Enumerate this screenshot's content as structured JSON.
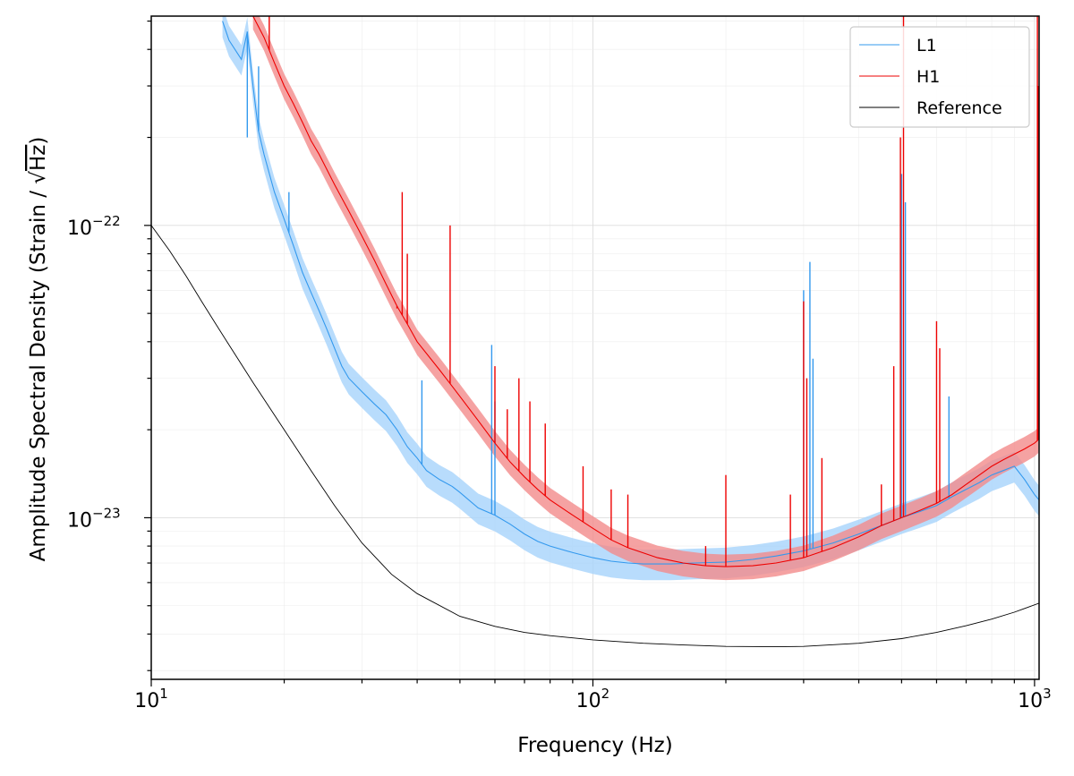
{
  "chart_data": {
    "type": "line",
    "title": "",
    "xlabel": "Frequency (Hz)",
    "ylabel_text": "Amplitude Spectral Density (Strain / √Hz)",
    "ylabel": {
      "prefix": "Amplitude Spectral Density (Strain / ",
      "radical": "√",
      "radicand": "Hz",
      "suffix": ")"
    },
    "xscale": "log",
    "yscale": "log",
    "xlim": [
      10,
      1024
    ],
    "ylim": [
      2.8e-24,
      5.2e-22
    ],
    "xticks": [
      {
        "value": 10,
        "base": "10",
        "exp": "1"
      },
      {
        "value": 100,
        "base": "10",
        "exp": "2"
      },
      {
        "value": 1000,
        "base": "10",
        "exp": "3"
      }
    ],
    "yticks": [
      {
        "value": 1e-23,
        "base": "10",
        "exp": "−23"
      },
      {
        "value": 1e-22,
        "base": "10",
        "exp": "−22"
      }
    ],
    "grid": true,
    "legend": {
      "position": "top-right",
      "entries": [
        {
          "label": "L1",
          "color": "#3399ee"
        },
        {
          "label": "H1",
          "color": "#ee0000"
        },
        {
          "label": "Reference",
          "color": "#000000"
        }
      ]
    },
    "series": [
      {
        "name": "L1",
        "color": "#3399ee",
        "band_color": "#a6d3fb",
        "x": [
          14.5,
          15,
          16,
          16.5,
          17,
          17.5,
          18,
          19,
          20,
          21,
          22,
          23,
          24,
          25,
          26,
          27,
          28,
          30,
          32,
          34,
          36,
          38,
          40,
          42,
          45,
          48,
          50,
          55,
          60,
          65,
          70,
          75,
          80,
          90,
          100,
          110,
          120,
          130,
          150,
          170,
          200,
          230,
          260,
          300,
          350,
          400,
          450,
          500,
          550,
          600,
          650,
          700,
          750,
          800,
          850,
          900,
          950,
          1000,
          1024
        ],
        "y": [
          5e-22,
          4.3e-22,
          3.7e-22,
          4.6e-22,
          3e-22,
          2.1e-22,
          1.75e-22,
          1.3e-22,
          1.05e-22,
          8.5e-23,
          6.9e-23,
          5.9e-23,
          5.1e-23,
          4.4e-23,
          3.8e-23,
          3.3e-23,
          3e-23,
          2.7e-23,
          2.45e-23,
          2.25e-23,
          2e-23,
          1.75e-23,
          1.6e-23,
          1.45e-23,
          1.35e-23,
          1.28e-23,
          1.22e-23,
          1.08e-23,
          1.02e-23,
          9.5e-24,
          8.8e-24,
          8.3e-24,
          8e-24,
          7.6e-24,
          7.3e-24,
          7.1e-24,
          7e-24,
          6.95e-24,
          6.95e-24,
          7e-24,
          7.05e-24,
          7.2e-24,
          7.4e-24,
          7.7e-24,
          8.2e-24,
          8.8e-24,
          9.4e-24,
          1e-23,
          1.05e-23,
          1.1e-23,
          1.18e-23,
          1.25e-23,
          1.32e-23,
          1.4e-23,
          1.45e-23,
          1.5e-23,
          1.35e-23,
          1.2e-23,
          1.15e-23
        ],
        "band": 0.12,
        "spikes": [
          [
            16.5,
            2e-22
          ],
          [
            17.5,
            3.5e-22
          ],
          [
            20.5,
            1.3e-22
          ],
          [
            41,
            2.95e-23
          ],
          [
            59,
            3.9e-23
          ],
          [
            60,
            2.5e-23
          ],
          [
            300,
            6e-23
          ],
          [
            310,
            7.5e-23
          ],
          [
            315,
            3.5e-23
          ],
          [
            500,
            1.5e-22
          ],
          [
            510,
            1.2e-22
          ],
          [
            640,
            2.6e-23
          ]
        ]
      },
      {
        "name": "H1",
        "color": "#ee0000",
        "band_color": "#f28b8b",
        "x": [
          17,
          18,
          19,
          20,
          21,
          22,
          23,
          24,
          25,
          26,
          28,
          30,
          32,
          34,
          36,
          38,
          40,
          45,
          50,
          55,
          60,
          65,
          70,
          75,
          80,
          90,
          100,
          110,
          120,
          140,
          160,
          180,
          200,
          230,
          260,
          300,
          350,
          400,
          450,
          500,
          550,
          600,
          650,
          700,
          750,
          800,
          850,
          900,
          950,
          1000,
          1020
        ],
        "y": [
          5.2e-22,
          4.4e-22,
          3.6e-22,
          3e-22,
          2.6e-22,
          2.25e-22,
          1.95e-22,
          1.75e-22,
          1.55e-22,
          1.38e-22,
          1.12e-22,
          9.2e-23,
          7.6e-23,
          6.3e-23,
          5.3e-23,
          4.6e-23,
          4e-23,
          3.2e-23,
          2.6e-23,
          2.15e-23,
          1.8e-23,
          1.55e-23,
          1.38e-23,
          1.25e-23,
          1.15e-23,
          1.02e-23,
          9.2e-24,
          8.4e-24,
          7.9e-24,
          7.3e-24,
          7e-24,
          6.85e-24,
          6.8e-24,
          6.85e-24,
          7e-24,
          7.3e-24,
          7.9e-24,
          8.6e-24,
          9.4e-24,
          1e-23,
          1.06e-23,
          1.12e-23,
          1.2e-23,
          1.3e-23,
          1.4e-23,
          1.5e-23,
          1.58e-23,
          1.65e-23,
          1.72e-23,
          1.8e-23,
          1.85e-23
        ],
        "band": 0.1,
        "spikes": [
          [
            18.5,
            5.2e-22
          ],
          [
            36,
            5.2e-23
          ],
          [
            37,
            1.3e-22
          ],
          [
            38,
            8e-23
          ],
          [
            47.5,
            1e-22
          ],
          [
            60,
            3.3e-23
          ],
          [
            64,
            2.35e-23
          ],
          [
            68,
            3e-23
          ],
          [
            72,
            2.5e-23
          ],
          [
            78,
            2.1e-23
          ],
          [
            95,
            1.5e-23
          ],
          [
            110,
            1.25e-23
          ],
          [
            120,
            1.2e-23
          ],
          [
            180,
            8e-24
          ],
          [
            200,
            1.4e-23
          ],
          [
            280,
            1.2e-23
          ],
          [
            300,
            5.5e-23
          ],
          [
            305,
            3e-23
          ],
          [
            330,
            1.6e-23
          ],
          [
            450,
            1.3e-23
          ],
          [
            480,
            3.3e-23
          ],
          [
            497,
            2e-22
          ],
          [
            505,
            5.2e-22
          ],
          [
            600,
            4.7e-23
          ],
          [
            610,
            3.8e-23
          ],
          [
            1015,
            5.2e-22
          ],
          [
            1020,
            3e-22
          ]
        ]
      },
      {
        "name": "Reference",
        "color": "#000000",
        "x": [
          10,
          11,
          12,
          13,
          14,
          15,
          17,
          20,
          23,
          26,
          30,
          35,
          40,
          50,
          60,
          70,
          80,
          100,
          130,
          160,
          200,
          260,
          300,
          400,
          500,
          600,
          700,
          800,
          900,
          1024
        ],
        "y": [
          1e-22,
          8.2e-23,
          6.7e-23,
          5.5e-23,
          4.6e-23,
          3.9e-23,
          2.9e-23,
          2e-23,
          1.45e-23,
          1.1e-23,
          8.2e-24,
          6.4e-24,
          5.5e-24,
          4.6e-24,
          4.25e-24,
          4.05e-24,
          3.95e-24,
          3.82e-24,
          3.72e-24,
          3.67e-24,
          3.63e-24,
          3.62e-24,
          3.63e-24,
          3.72e-24,
          3.86e-24,
          4.05e-24,
          4.27e-24,
          4.5e-24,
          4.75e-24,
          5.1e-24
        ]
      }
    ]
  }
}
